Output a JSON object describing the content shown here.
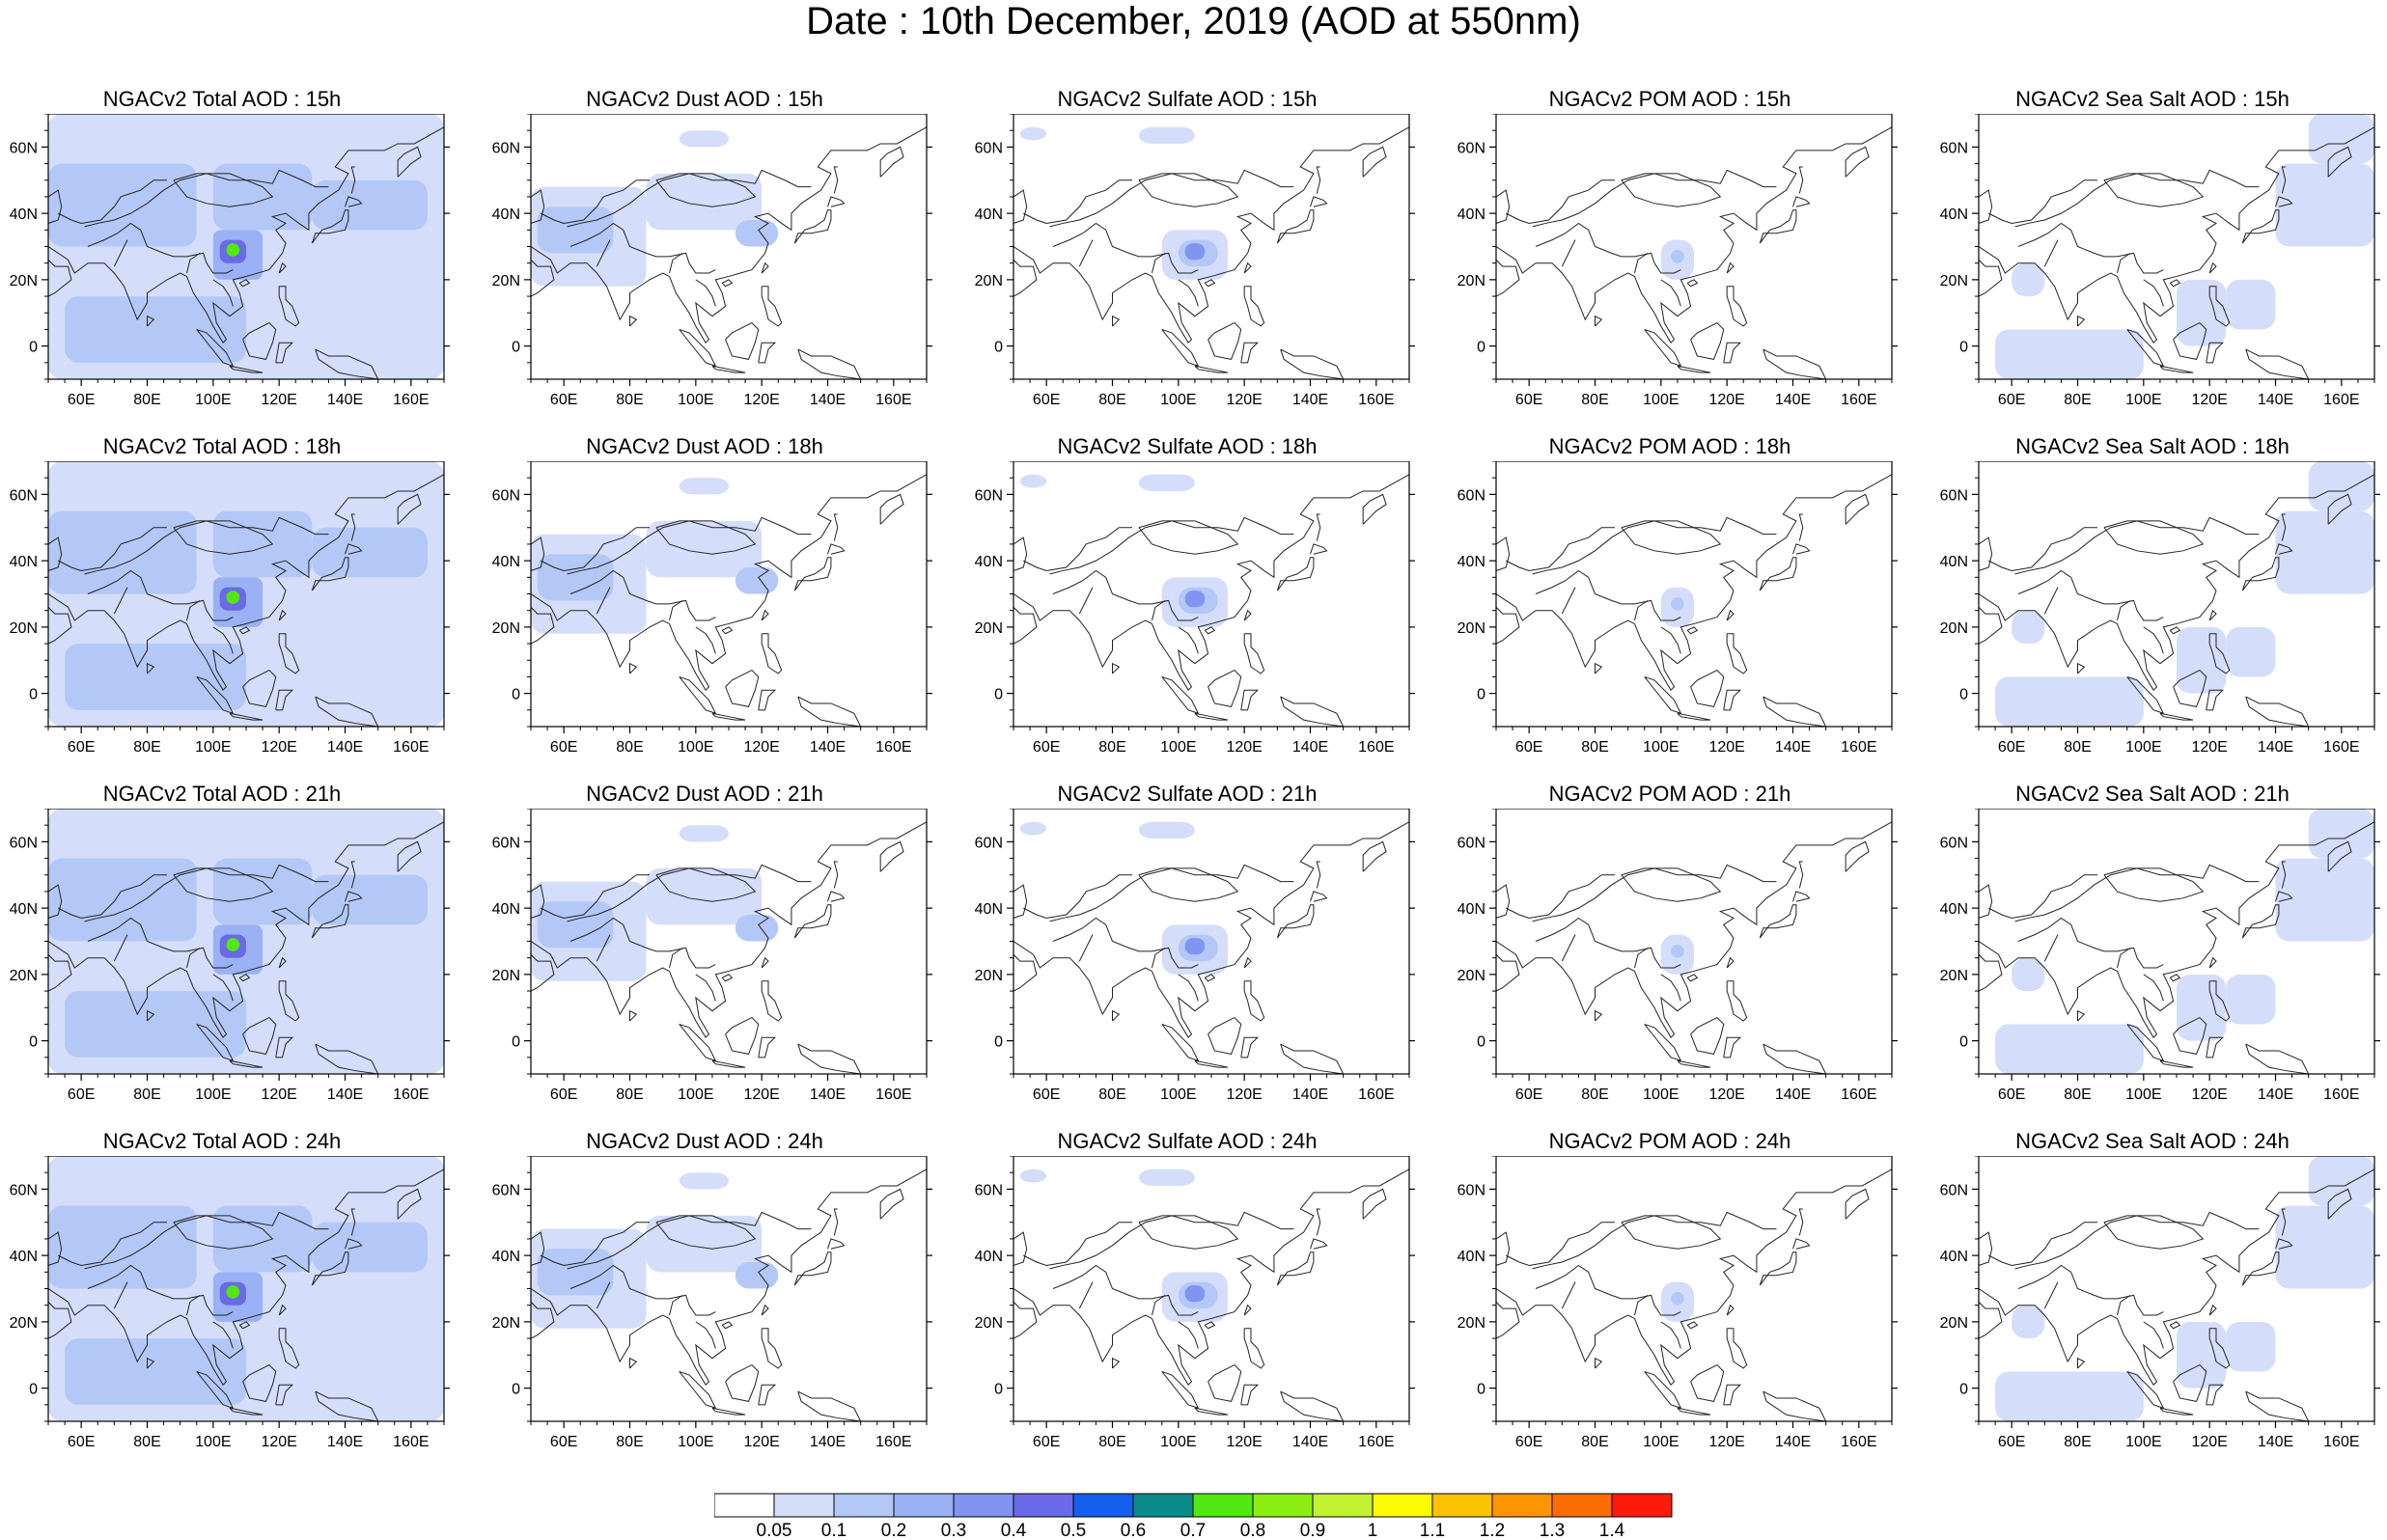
{
  "title": "Date : 10th December, 2019 (AOD at 550nm)",
  "longitude_ticks": [
    "60E",
    "80E",
    "100E",
    "120E",
    "140E",
    "160E"
  ],
  "latitude_ticks": [
    "60N",
    "40N",
    "20N",
    "0"
  ],
  "panels": [
    {
      "title": "NGACv2 Total AOD : 15h",
      "species": "total"
    },
    {
      "title": "NGACv2 Dust AOD : 15h",
      "species": "dust"
    },
    {
      "title": "NGACv2 Sulfate AOD : 15h",
      "species": "sulfate"
    },
    {
      "title": "NGACv2 POM AOD : 15h",
      "species": "pom"
    },
    {
      "title": "NGACv2 Sea Salt AOD : 15h",
      "species": "seasalt"
    },
    {
      "title": "NGACv2 Total AOD : 18h",
      "species": "total"
    },
    {
      "title": "NGACv2 Dust AOD : 18h",
      "species": "dust"
    },
    {
      "title": "NGACv2 Sulfate AOD : 18h",
      "species": "sulfate"
    },
    {
      "title": "NGACv2 POM AOD : 18h",
      "species": "pom"
    },
    {
      "title": "NGACv2 Sea Salt AOD : 18h",
      "species": "seasalt"
    },
    {
      "title": "NGACv2 Total AOD : 21h",
      "species": "total"
    },
    {
      "title": "NGACv2 Dust AOD : 21h",
      "species": "dust"
    },
    {
      "title": "NGACv2 Sulfate AOD : 21h",
      "species": "sulfate"
    },
    {
      "title": "NGACv2 POM AOD : 21h",
      "species": "pom"
    },
    {
      "title": "NGACv2 Sea Salt AOD : 21h",
      "species": "seasalt"
    },
    {
      "title": "NGACv2 Total AOD : 24h",
      "species": "total"
    },
    {
      "title": "NGACv2 Dust AOD : 24h",
      "species": "dust"
    },
    {
      "title": "NGACv2 Sulfate AOD : 24h",
      "species": "sulfate"
    },
    {
      "title": "NGACv2 POM AOD : 24h",
      "species": "pom"
    },
    {
      "title": "NGACv2 Sea Salt  AOD : 24h",
      "species": "seasalt"
    }
  ],
  "colorbar": {
    "labels": [
      "0.05",
      "0.1",
      "0.2",
      "0.3",
      "0.4",
      "0.5",
      "0.6",
      "0.7",
      "0.8",
      "0.9",
      "1",
      "1.1",
      "1.2",
      "1.3",
      "1.4"
    ],
    "colors": [
      "#ffffff",
      "#d4defb",
      "#b4c8f7",
      "#9ab2f5",
      "#8294f2",
      "#6a6ae8",
      "#1360ee",
      "#0b8b8b",
      "#52e80f",
      "#8cef14",
      "#c3f233",
      "#fdfd00",
      "#fdc300",
      "#fd9500",
      "#fd6e00",
      "#fd1b0b"
    ]
  },
  "chart_data": {
    "type": "heatmap",
    "variable": "AOD at 550nm",
    "date": "10th December, 2019",
    "map_extent": {
      "lon": [
        50,
        170
      ],
      "lat": [
        -10,
        70
      ]
    },
    "rows": [
      "15h",
      "18h",
      "21h",
      "24h"
    ],
    "columns": [
      "Total",
      "Dust",
      "Sulfate",
      "POM",
      "Sea Salt"
    ],
    "features": [
      {
        "species": "total",
        "note": "widespread 0.1-0.2 over continent and oceans",
        "level": 0.15
      },
      {
        "species": "total",
        "note": "Sichuan basin hotspot",
        "lon": 105,
        "lat": 29,
        "level": 0.75
      },
      {
        "species": "dust",
        "note": "Central Asia / Tarim band",
        "lon": 80,
        "lat": 40,
        "level": 0.15
      },
      {
        "species": "sulfate",
        "note": "Sichuan basin",
        "lon": 105,
        "lat": 29,
        "level": 0.35
      },
      {
        "species": "sulfate",
        "note": "Siberian patch",
        "lon": 95,
        "lat": 63,
        "level": 0.1
      },
      {
        "species": "pom",
        "note": "South China patch",
        "lon": 104,
        "lat": 26,
        "level": 0.1
      },
      {
        "species": "seasalt",
        "note": "NW Pacific",
        "lon": 160,
        "lat": 45,
        "level": 0.15
      },
      {
        "species": "seasalt",
        "note": "South China Sea / Indian Ocean",
        "lon": 115,
        "lat": 8,
        "level": 0.1
      }
    ]
  }
}
